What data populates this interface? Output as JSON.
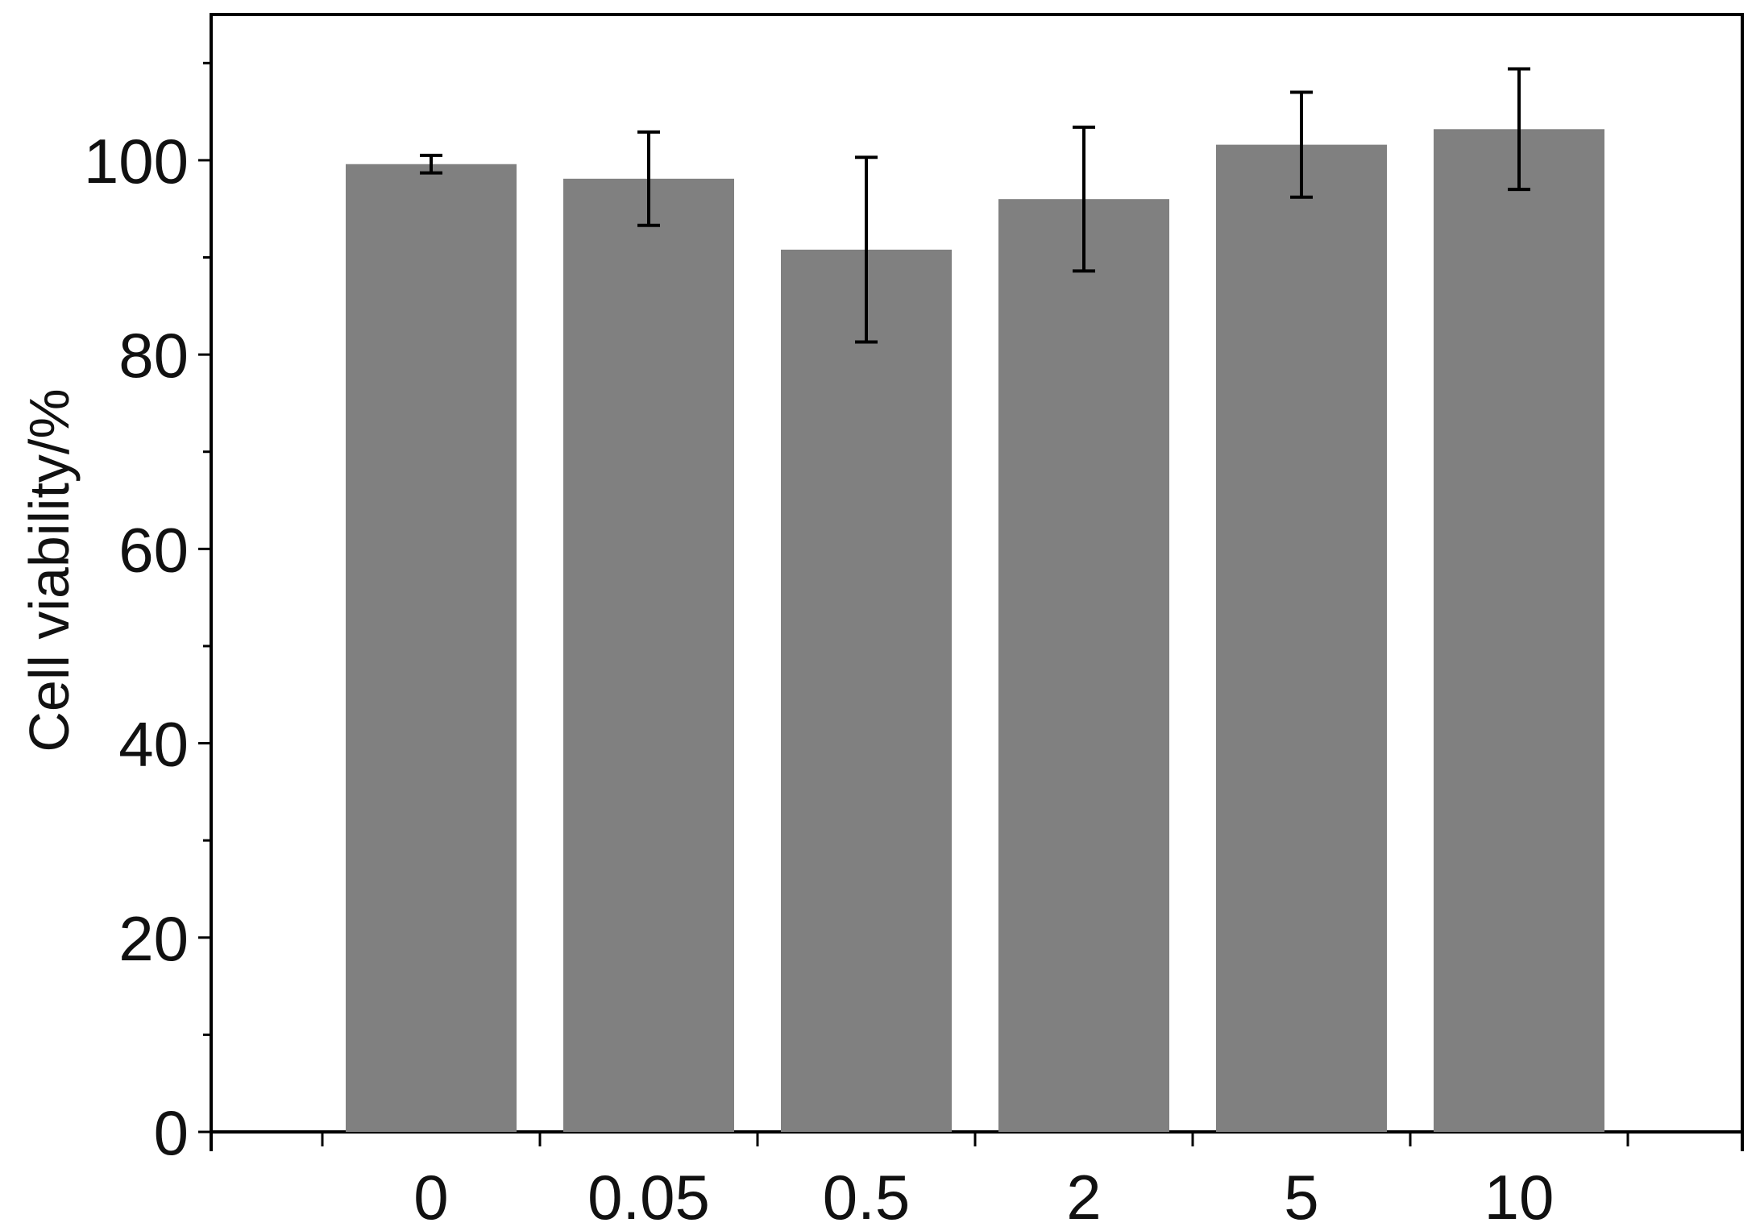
{
  "chart_data": {
    "type": "bar",
    "title": "",
    "xlabel": "",
    "ylabel": "Cell viability/%",
    "categories": [
      "0",
      "0.05",
      "0.5",
      "2",
      "5",
      "10"
    ],
    "values": [
      99.6,
      98.1,
      90.8,
      96.0,
      101.6,
      103.2
    ],
    "errors": [
      0.9,
      4.8,
      9.5,
      7.4,
      5.4,
      6.2
    ],
    "ylim": [
      0,
      115
    ],
    "yticks": [
      "0",
      "20",
      "40",
      "60",
      "80",
      "100"
    ],
    "ytick_values": [
      0,
      20,
      40,
      60,
      80,
      100
    ],
    "grid": false,
    "legend": "none",
    "bar_color": "#808080",
    "axis_color": "#000000"
  }
}
